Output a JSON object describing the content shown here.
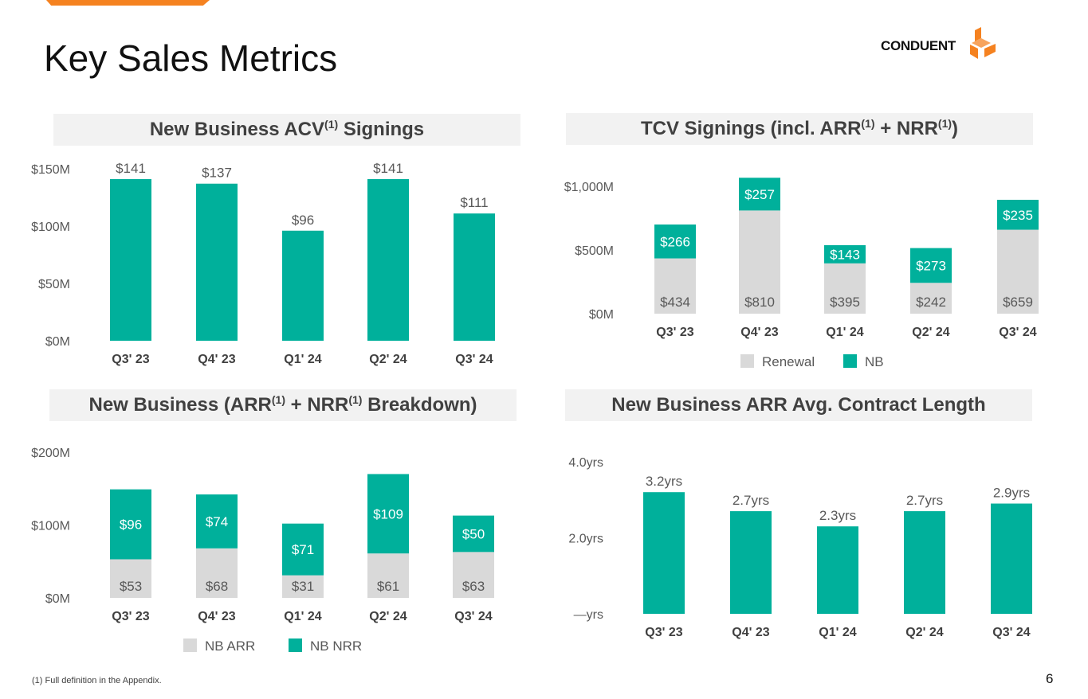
{
  "page": {
    "title": "Key Sales Metrics",
    "logo_text": "CONDUENT",
    "footnote": "(1) Full definition in the Appendix.",
    "page_number": "6"
  },
  "colors": {
    "teal": "#00b09b",
    "gray": "#d9d9d9",
    "orange": "#f58220"
  },
  "panels": {
    "acv": {
      "title_a": "New Business ACV",
      "sup": "(1)",
      "title_b": " Signings"
    },
    "tcv": {
      "title_a": "TCV Signings (incl. ARR",
      "sup1": "(1)",
      "title_b": " + NRR",
      "sup2": "(1)",
      "title_c": ")"
    },
    "nb": {
      "title_a": "New Business (ARR",
      "sup1": "(1)",
      "title_b": " + NRR",
      "sup2": "(1)",
      "title_c": " Breakdown)"
    },
    "arr": {
      "title": "New Business ARR Avg. Contract Length"
    }
  },
  "chart_data": [
    {
      "id": "acv",
      "type": "bar",
      "title": "New Business ACV(1) Signings",
      "categories": [
        "Q3' 23",
        "Q4' 23",
        "Q1' 24",
        "Q2' 24",
        "Q3' 24"
      ],
      "values": [
        141,
        137,
        96,
        141,
        111
      ],
      "value_labels": [
        "$141",
        "$137",
        "$96",
        "$141",
        "$111"
      ],
      "ylim": [
        0,
        150
      ],
      "yticks": [
        0,
        50,
        100,
        150
      ],
      "ytick_labels": [
        "$0M",
        "$50M",
        "$100M",
        "$150M"
      ]
    },
    {
      "id": "tcv",
      "type": "bar",
      "stacked": true,
      "title": "TCV Signings (incl. ARR(1) + NRR(1))",
      "categories": [
        "Q3' 23",
        "Q4' 23",
        "Q1' 24",
        "Q2' 24",
        "Q3' 24"
      ],
      "series": [
        {
          "name": "Renewal",
          "color": "#d9d9d9",
          "values": [
            434,
            810,
            395,
            242,
            659
          ],
          "labels": [
            "$434",
            "$810",
            "$395",
            "$242",
            "$659"
          ]
        },
        {
          "name": "NB",
          "color": "#00b09b",
          "values": [
            266,
            257,
            143,
            273,
            235
          ],
          "labels": [
            "$266",
            "$257",
            "$143",
            "$273",
            "$235"
          ]
        }
      ],
      "ylim": [
        0,
        1000
      ],
      "yticks": [
        0,
        500,
        1000
      ],
      "ytick_labels": [
        "$0M",
        "$500M",
        "$1,000M"
      ],
      "legend": [
        "Renewal",
        "NB"
      ]
    },
    {
      "id": "nb",
      "type": "bar",
      "stacked": true,
      "title": "New Business (ARR(1) + NRR(1) Breakdown)",
      "categories": [
        "Q3' 23",
        "Q4' 23",
        "Q1' 24",
        "Q2' 24",
        "Q3' 24"
      ],
      "series": [
        {
          "name": "NB ARR",
          "color": "#d9d9d9",
          "values": [
            53,
            68,
            31,
            61,
            63
          ],
          "labels": [
            "$53",
            "$68",
            "$31",
            "$61",
            "$63"
          ]
        },
        {
          "name": "NB NRR",
          "color": "#00b09b",
          "values": [
            96,
            74,
            71,
            109,
            50
          ],
          "labels": [
            "$96",
            "$74",
            "$71",
            "$109",
            "$50"
          ]
        }
      ],
      "ylim": [
        0,
        200
      ],
      "yticks": [
        0,
        100,
        200
      ],
      "ytick_labels": [
        "$0M",
        "$100M",
        "$200M"
      ],
      "legend": [
        "NB ARR",
        "NB NRR"
      ]
    },
    {
      "id": "arr",
      "type": "bar",
      "title": "New Business ARR Avg. Contract Length",
      "categories": [
        "Q3' 23",
        "Q4' 23",
        "Q1' 24",
        "Q2' 24",
        "Q3' 24"
      ],
      "values": [
        3.2,
        2.7,
        2.3,
        2.7,
        2.9
      ],
      "value_labels": [
        "3.2yrs",
        "2.7yrs",
        "2.3yrs",
        "2.7yrs",
        "2.9yrs"
      ],
      "ylim": [
        0,
        4
      ],
      "yticks": [
        0,
        2,
        4
      ],
      "ytick_labels": [
        "—yrs",
        "2.0yrs",
        "4.0yrs"
      ]
    }
  ]
}
